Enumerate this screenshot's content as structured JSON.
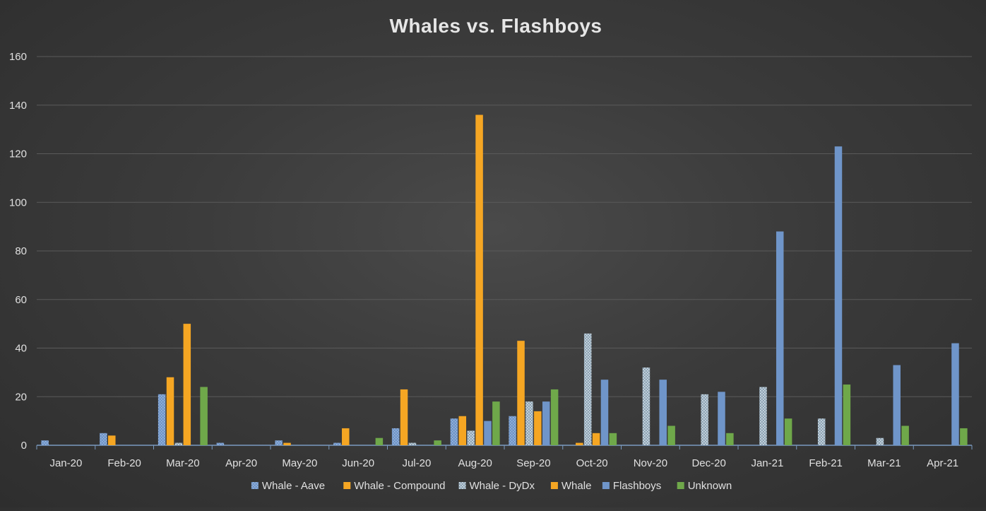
{
  "chart_data": {
    "type": "bar",
    "title": "Whales vs. Flashboys",
    "xlabel": "",
    "ylabel": "",
    "ylim": [
      0,
      160
    ],
    "yticks": [
      0,
      20,
      40,
      60,
      80,
      100,
      120,
      140,
      160
    ],
    "grid": true,
    "legend_position": "bottom",
    "categories": [
      "Jan-20",
      "Feb-20",
      "Mar-20",
      "Apr-20",
      "May-20",
      "Jun-20",
      "Jul-20",
      "Aug-20",
      "Sep-20",
      "Oct-20",
      "Nov-20",
      "Dec-20",
      "Jan-21",
      "Feb-21",
      "Mar-21",
      "Apr-21"
    ],
    "series": [
      {
        "name": "Whale - Aave",
        "color": "#6f95c9",
        "pattern": "dotted-blue",
        "values": [
          2,
          5,
          21,
          1,
          2,
          1,
          7,
          11,
          12,
          0,
          0,
          0,
          0,
          0,
          0,
          0
        ]
      },
      {
        "name": "Whale - Compound",
        "color": "#f5a623",
        "pattern": "solid",
        "values": [
          0,
          4,
          28,
          0,
          1,
          7,
          23,
          12,
          43,
          1,
          0,
          0,
          0,
          0,
          0,
          0
        ]
      },
      {
        "name": "Whale - DyDx",
        "color": "#b4c4d0",
        "pattern": "dotted-grey",
        "values": [
          0,
          0,
          1,
          0,
          0,
          0,
          1,
          6,
          18,
          46,
          32,
          21,
          24,
          11,
          3,
          0
        ]
      },
      {
        "name": "Whale",
        "color": "#f5a623",
        "pattern": "solid",
        "values": [
          0,
          0,
          50,
          0,
          0,
          0,
          0,
          136,
          14,
          5,
          0,
          0,
          0,
          0,
          0,
          0
        ]
      },
      {
        "name": "Flashboys",
        "color": "#6f95c9",
        "pattern": "solid",
        "values": [
          0,
          0,
          0,
          0,
          0,
          0,
          0,
          10,
          18,
          27,
          27,
          22,
          88,
          123,
          33,
          42
        ]
      },
      {
        "name": "Unknown",
        "color": "#6fa84a",
        "pattern": "solid",
        "values": [
          0,
          0,
          24,
          0,
          0,
          3,
          2,
          18,
          23,
          5,
          8,
          5,
          11,
          25,
          8,
          7
        ]
      }
    ],
    "colors": {
      "gridline": "#5a5a5a",
      "axis": "#7a9ac0",
      "text": "#e0e0e0"
    }
  }
}
